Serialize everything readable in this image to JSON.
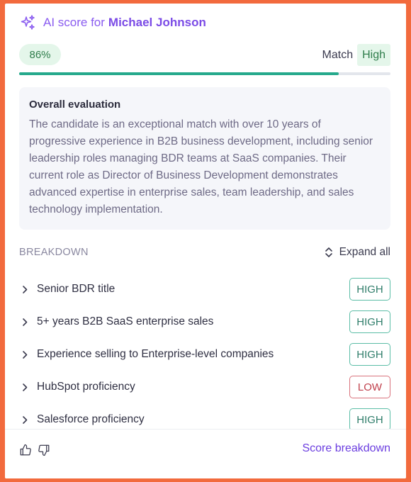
{
  "header": {
    "title": "AI score for",
    "candidate_name": "Michael Johnson"
  },
  "score": {
    "percent_label": "86%",
    "progress_fraction": 0.86,
    "match_label": "Match",
    "match_value": "High"
  },
  "evaluation": {
    "title": "Overall evaluation",
    "text": "The candidate is an exceptional match with over 10 years of progressive experience in B2B business development, including senior leadership roles managing BDR teams at SaaS companies. Their current role as Director of Business Development demonstrates advanced expertise in enterprise sales, team leadership, and sales technology implementation."
  },
  "breakdown": {
    "title": "BREAKDOWN",
    "expand_label": "Expand all",
    "items": [
      {
        "label": "Senior BDR title",
        "rating": "HIGH"
      },
      {
        "label": "5+ years B2B SaaS enterprise sales",
        "rating": "HIGH"
      },
      {
        "label": "Experience selling to Enterprise-level companies",
        "rating": "HIGH"
      },
      {
        "label": "HubSpot proficiency",
        "rating": "LOW"
      },
      {
        "label": "Salesforce proficiency",
        "rating": "HIGH"
      }
    ]
  },
  "footer": {
    "link_label": "Score breakdown"
  },
  "colors": {
    "accent": "#7b4be6",
    "high_border": "#5bbda6",
    "low_border": "#d9717b",
    "progress": "#26a98c"
  },
  "icons": [
    "sparkle-icon",
    "chevron-updown-icon",
    "chevron-right-icon",
    "thumbs-up-icon",
    "thumbs-down-icon"
  ]
}
